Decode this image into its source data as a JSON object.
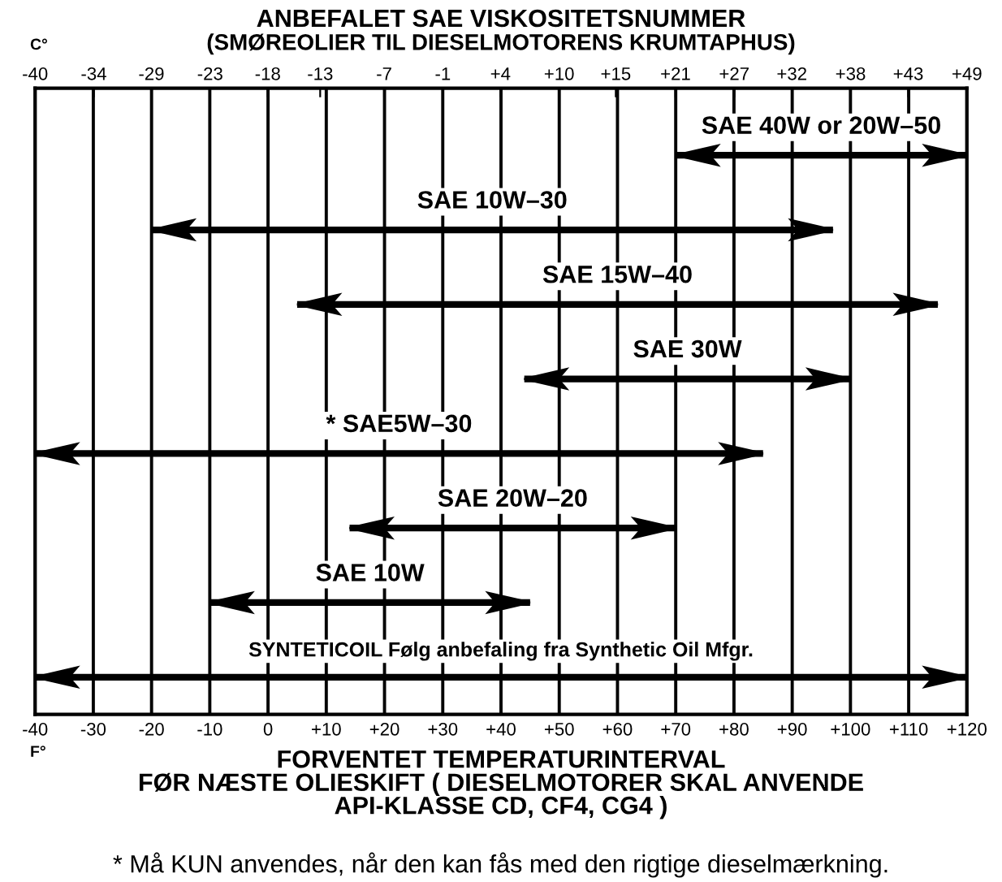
{
  "chart_data": {
    "type": "bar",
    "orientation": "horizontal",
    "title": "ANBEFALET SAE VISKOSITETSNUMMER",
    "subtitle": "(SMØREOLIER TIL DIESELMOTORENS KRUMTAPHUS)",
    "xlabel": "F°",
    "x2label": "C°",
    "categories": [
      "SAE 40W or 20W–50",
      "SAE 10W–30",
      "SAE 15W–40",
      "SAE 30W",
      "* SAE5W–30",
      "SAE 20W–20",
      "SAE 10W",
      "SYNTETICOIL Følg anbefaling fra Synthetic Oil Mfgr."
    ],
    "base": [
      70,
      -20,
      5,
      44,
      -40,
      14,
      -10,
      -40
    ],
    "values": [
      50,
      117,
      110,
      56,
      125,
      56,
      55,
      160
    ],
    "color": "#000000",
    "xlim": [
      -40,
      120
    ],
    "xticks": [
      -40,
      -30,
      -20,
      -10,
      0,
      {
        "value": 10,
        "label": "+10"
      },
      {
        "value": 20,
        "label": "+20"
      },
      {
        "value": 30,
        "label": "+30"
      },
      {
        "value": 40,
        "label": "+40"
      },
      {
        "value": 50,
        "label": "+50"
      },
      {
        "value": 60,
        "label": "+60"
      },
      {
        "value": 70,
        "label": "+70"
      },
      {
        "value": 80,
        "label": "+80"
      },
      {
        "value": 90,
        "label": "+90"
      },
      {
        "value": 100,
        "label": "+100"
      },
      {
        "value": 110,
        "label": "+110"
      },
      {
        "value": 120,
        "label": "+120"
      }
    ],
    "x2lim": [
      -40,
      48.9
    ],
    "x2ticks": [
      -40,
      {
        "value": -34.4,
        "label": "-34"
      },
      {
        "value": -28.9,
        "label": "-29"
      },
      {
        "value": -23.3,
        "label": "-23"
      },
      {
        "value": -17.8,
        "label": "-18"
      },
      {
        "value": -12.8,
        "label": "-13"
      },
      {
        "value": -6.7,
        "label": "-7"
      },
      {
        "value": -1.1,
        "label": "-1"
      },
      {
        "value": 4.4,
        "label": "+4"
      },
      {
        "value": 10,
        "label": "+10"
      },
      {
        "value": 15.4,
        "label": "+15"
      },
      {
        "value": 21.1,
        "label": "+21"
      },
      {
        "value": 26.7,
        "label": "+27"
      },
      {
        "value": 32.2,
        "label": "+32"
      },
      {
        "value": 37.8,
        "label": "+38"
      },
      {
        "value": 43.3,
        "label": "+43"
      },
      {
        "value": 48.9,
        "label": "+49"
      }
    ],
    "grid": "x",
    "tick_labels": "x",
    "annotations": [
      "FORVENTET TEMPERATURINTERVAL\nFØR NÆSTE OLIESKIFT ( DIESELMOTORER SKAL ANVENDE\nAPI-KLASSE CD, CF4, CG4 )",
      "* Må KUN anvendes, når den kan fås med den rigtige dieselmærkning."
    ]
  }
}
